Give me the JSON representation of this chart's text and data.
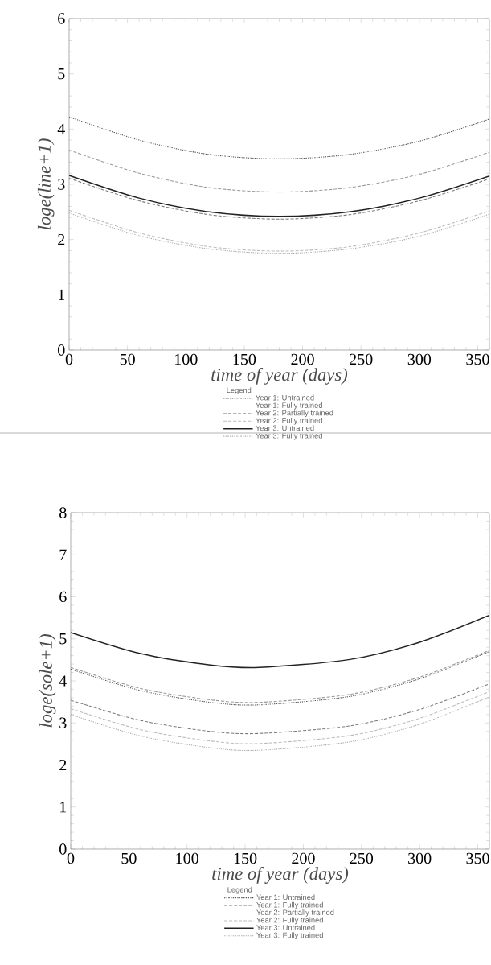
{
  "chart_data": [
    {
      "type": "line",
      "xlabel": "time of year (days)",
      "ylabel": "loge(line+1)",
      "legend_title": "Legend",
      "legend": "bottom",
      "grid": false,
      "x": [
        0,
        60,
        120,
        180,
        240,
        300,
        360
      ],
      "xlim": [
        0,
        360
      ],
      "ylim": [
        0,
        6
      ],
      "xticks": [
        0,
        50,
        100,
        150,
        200,
        250,
        300,
        350
      ],
      "yticks": [
        0,
        1,
        2,
        3,
        4,
        5,
        6
      ],
      "series": [
        {
          "name": "Year 1: Untrained",
          "color": "#555555",
          "line_style": "dotted",
          "values": [
            4.22,
            3.8,
            3.54,
            3.46,
            3.54,
            3.78,
            4.18
          ]
        },
        {
          "name": "Year 1: Fully trained",
          "color": "#7a7a7a",
          "line_style": "dashed",
          "values": [
            3.11,
            2.7,
            2.45,
            2.37,
            2.45,
            2.7,
            3.1
          ]
        },
        {
          "name": "Year 2: Partially trained",
          "color": "#999999",
          "line_style": "dashed",
          "values": [
            3.62,
            3.2,
            2.94,
            2.86,
            2.94,
            3.18,
            3.58
          ]
        },
        {
          "name": "Year 2: Fully trained",
          "color": "#bbbbbb",
          "line_style": "dashed",
          "values": [
            2.53,
            2.12,
            1.87,
            1.79,
            1.87,
            2.12,
            2.52
          ]
        },
        {
          "name": "Year 3: Untrained",
          "color": "#222222",
          "line_style": "solid",
          "values": [
            3.16,
            2.75,
            2.5,
            2.42,
            2.5,
            2.75,
            3.15
          ]
        },
        {
          "name": "Year 3: Fully trained",
          "color": "#aaaaaa",
          "line_style": "dotted",
          "values": [
            2.48,
            2.07,
            1.83,
            1.75,
            1.83,
            2.06,
            2.46
          ]
        }
      ]
    },
    {
      "type": "line",
      "xlabel": "time of year (days)",
      "ylabel": "loge(sole+1)",
      "legend_title": "Legend",
      "legend": "bottom",
      "grid": false,
      "x": [
        0,
        60,
        120,
        162,
        240,
        300,
        360
      ],
      "xlim": [
        0,
        360
      ],
      "ylim": [
        0,
        8
      ],
      "xticks": [
        0,
        50,
        100,
        150,
        200,
        250,
        300,
        350
      ],
      "yticks": [
        0,
        1,
        2,
        3,
        4,
        5,
        6,
        7,
        8
      ],
      "series": [
        {
          "name": "Year 1: Untrained",
          "color": "#555555",
          "line_style": "dotted",
          "values": [
            4.28,
            3.77,
            3.49,
            3.43,
            3.63,
            4.05,
            4.7
          ]
        },
        {
          "name": "Year 1: Fully trained",
          "color": "#7a7a7a",
          "line_style": "dashed",
          "values": [
            3.54,
            3.06,
            2.8,
            2.75,
            2.93,
            3.32,
            3.93
          ]
        },
        {
          "name": "Year 2: Partially trained",
          "color": "#999999",
          "line_style": "dashed",
          "values": [
            4.32,
            3.82,
            3.55,
            3.49,
            3.68,
            4.09,
            4.73
          ]
        },
        {
          "name": "Year 2: Fully trained",
          "color": "#bbbbbb",
          "line_style": "dashed",
          "values": [
            3.34,
            2.84,
            2.57,
            2.51,
            2.7,
            3.11,
            3.75
          ]
        },
        {
          "name": "Year 3: Untrained",
          "color": "#222222",
          "line_style": "solid",
          "values": [
            5.15,
            4.65,
            4.38,
            4.32,
            4.51,
            4.92,
            5.56
          ]
        },
        {
          "name": "Year 3: Fully trained",
          "color": "#aaaaaa",
          "line_style": "dotted",
          "values": [
            3.2,
            2.69,
            2.41,
            2.35,
            2.55,
            2.97,
            3.62
          ]
        }
      ]
    }
  ]
}
